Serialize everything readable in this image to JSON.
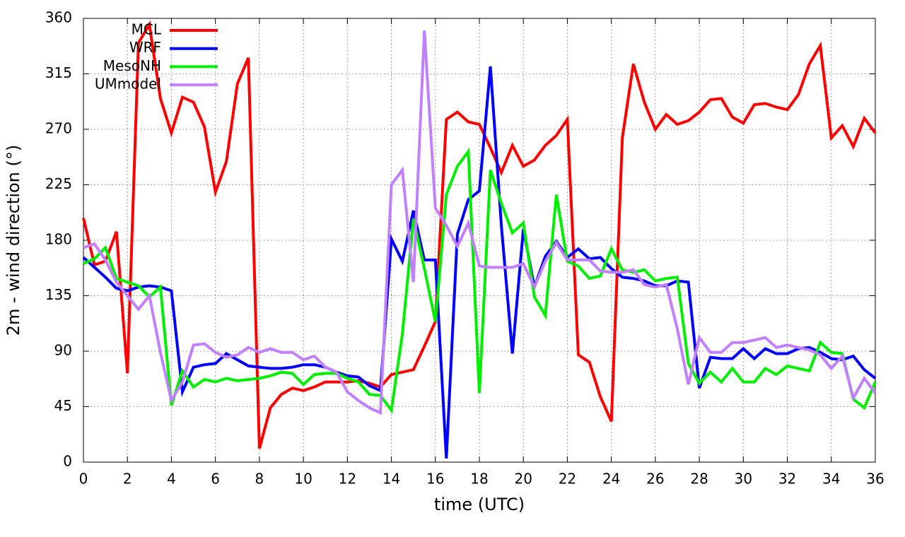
{
  "chart_data": {
    "type": "line",
    "x_label": "time (UTC)",
    "y_label": "2m - wind direction (°)",
    "x": [
      0,
      0.5,
      1,
      1.5,
      2,
      2.5,
      3,
      3.5,
      4,
      4.5,
      5,
      5.5,
      6,
      6.5,
      7,
      7.5,
      8,
      8.5,
      9,
      9.5,
      10,
      10.5,
      11,
      11.5,
      12,
      12.5,
      13,
      13.5,
      14,
      14.5,
      15,
      15.5,
      16,
      16.5,
      17,
      17.5,
      18,
      18.5,
      19,
      19.5,
      20,
      20.5,
      21,
      21.5,
      22,
      22.5,
      23,
      23.5,
      24,
      24.5,
      25,
      25.5,
      26,
      26.5,
      27,
      27.5,
      28,
      28.5,
      29,
      29.5,
      30,
      30.5,
      31,
      31.5,
      32,
      32.5,
      33,
      33.5,
      34,
      34.5,
      35,
      35.5,
      36
    ],
    "series": [
      {
        "name": "MCL",
        "color": "#ff0000",
        "values": [
          198,
          160,
          163,
          187,
          72,
          340,
          355,
          295,
          267,
          296,
          292,
          272,
          219,
          244,
          307,
          328,
          11,
          44,
          55,
          60,
          58,
          61,
          65,
          65,
          65,
          66,
          64,
          61,
          71,
          73,
          75,
          94,
          114,
          278,
          284,
          276,
          274,
          255,
          235,
          257,
          240,
          245,
          257,
          265,
          278,
          87,
          81,
          53,
          33,
          263,
          323,
          292,
          270,
          282,
          274,
          277,
          284,
          294,
          295,
          280,
          275,
          290,
          291,
          288,
          286,
          298,
          323,
          338,
          263,
          273,
          256,
          279,
          267
        ]
      },
      {
        "name": "WRF",
        "color": "#0000ff",
        "values": [
          166,
          158,
          150,
          141,
          139,
          142,
          143,
          142,
          139,
          57,
          77,
          79,
          80,
          88,
          83,
          78,
          77,
          76,
          76,
          77,
          79,
          79,
          77,
          73,
          70,
          69,
          62,
          58,
          181,
          163,
          204,
          164,
          164,
          3,
          185,
          213,
          220,
          321,
          192,
          88,
          189,
          142,
          167,
          179,
          166,
          173,
          165,
          166,
          157,
          150,
          149,
          147,
          143,
          143,
          147,
          146,
          60,
          85,
          84,
          84,
          92,
          84,
          92,
          88,
          88,
          92,
          93,
          89,
          84,
          83,
          86,
          75,
          68
        ]
      },
      {
        "name": "MesoNH",
        "color": "#00ee00",
        "values": [
          161,
          165,
          174,
          149,
          146,
          143,
          134,
          142,
          46,
          74,
          61,
          67,
          65,
          68,
          66,
          67,
          68,
          70,
          73,
          72,
          63,
          71,
          72,
          72,
          68,
          65,
          55,
          54,
          42,
          104,
          197,
          157,
          114,
          217,
          240,
          252,
          56,
          237,
          210,
          186,
          194,
          134,
          119,
          217,
          163,
          159,
          149,
          151,
          173,
          156,
          154,
          156,
          147,
          149,
          150,
          80,
          64,
          73,
          65,
          76,
          65,
          65,
          76,
          71,
          78,
          76,
          74,
          97,
          89,
          88,
          51,
          44,
          65
        ]
      },
      {
        "name": "UMmodel",
        "color": "#c080ff",
        "values": [
          174,
          177,
          164,
          146,
          135,
          124,
          135,
          89,
          50,
          65,
          95,
          96,
          89,
          85,
          87,
          93,
          89,
          92,
          89,
          89,
          83,
          86,
          77,
          73,
          57,
          50,
          44,
          40,
          225,
          237,
          146,
          350,
          206,
          192,
          175,
          194,
          159,
          158,
          158,
          158,
          161,
          142,
          163,
          178,
          164,
          164,
          164,
          155,
          154,
          154,
          156,
          144,
          142,
          144,
          108,
          63,
          101,
          89,
          89,
          97,
          97,
          99,
          101,
          93,
          95,
          93,
          91,
          87,
          76,
          86,
          52,
          68,
          56
        ]
      }
    ],
    "xlim": [
      0,
      36
    ],
    "xticks": [
      0,
      2,
      4,
      6,
      8,
      10,
      12,
      14,
      16,
      18,
      20,
      22,
      24,
      26,
      28,
      30,
      32,
      34,
      36
    ],
    "ylim": [
      0,
      360
    ],
    "yticks": [
      0,
      45,
      90,
      135,
      180,
      225,
      270,
      315,
      360
    ],
    "grid": true,
    "legend": "top-left"
  }
}
